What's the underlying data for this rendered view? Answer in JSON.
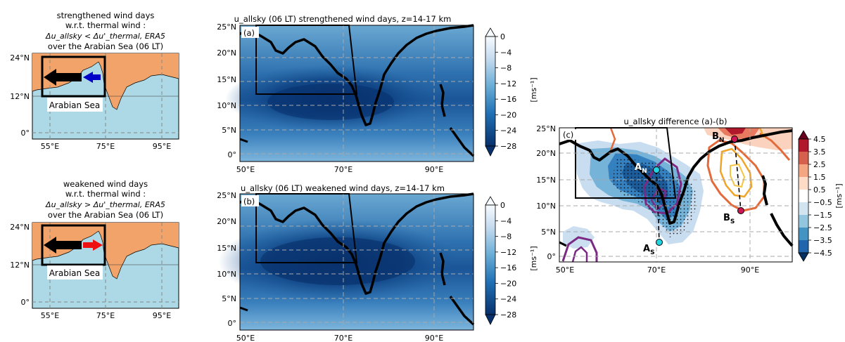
{
  "colors": {
    "land": "#f1a36a",
    "sea": "#add8e6",
    "arrow_black": "#000000",
    "arrow_strong": "#0000c8",
    "arrow_weak": "#ee1111",
    "hatch_dots": "#000000"
  },
  "schematic_top": {
    "title_l1": "strengthened wind days",
    "title_l2": "w.r.t. thermal wind :",
    "title_l3": "Δu_allsky < Δu'_thermal, ERA5",
    "title_l4": "over the Arabian Sea (06 LT)",
    "sea_label": "Arabian Sea",
    "yticks": [
      "24°N",
      "12°N",
      "0°"
    ],
    "xticks": [
      "55°E",
      "75°E",
      "95°E"
    ]
  },
  "schematic_bottom": {
    "title_l1": "weakened wind days",
    "title_l2": "w.r.t. thermal wind :",
    "title_l3": "Δu_allsky > Δu'_thermal, ERA5",
    "title_l4": "over the Arabian Sea (06 LT)",
    "sea_label": "Arabian Sea",
    "yticks": [
      "24°N",
      "12°N",
      "0°"
    ],
    "xticks": [
      "55°E",
      "75°E",
      "95°E"
    ]
  },
  "panel_a": {
    "title": "u_allsky (06 LT) strengthened wind days, z=14-17 km",
    "label": "(a)",
    "yticks": [
      "25°N",
      "20°N",
      "15°N",
      "10°N",
      "5°N",
      "0°"
    ],
    "xticks": [
      "50°E",
      "70°E",
      "90°E"
    ]
  },
  "panel_b": {
    "title": "u_allsky (06 LT) weakened wind days, z=14-17 km",
    "label": "(b)",
    "yticks": [
      "25°N",
      "20°N",
      "15°N",
      "10°N",
      "5°N",
      "0°"
    ],
    "xticks": [
      "50°E",
      "70°E",
      "90°E"
    ]
  },
  "colorbar_blue": {
    "ticks": [
      "0",
      "−4",
      "−8",
      "−12",
      "−16",
      "−20",
      "−24",
      "−28"
    ],
    "unit": "[ms⁻¹]",
    "levels": [
      0,
      -4,
      -8,
      -12,
      -16,
      -20,
      -24,
      -28
    ]
  },
  "panel_c": {
    "title": "u_allsky difference (a)-(b)",
    "label": "(c)",
    "yticks": [
      "25°N",
      "20°N",
      "15°N",
      "10°N",
      "5°N",
      "0°"
    ],
    "xticks": [
      "50°E",
      "70°E",
      "90°E"
    ],
    "points": [
      {
        "name": "A_N",
        "label": "A",
        "sub": "N"
      },
      {
        "name": "A_S",
        "label": "A",
        "sub": "S"
      },
      {
        "name": "B_N",
        "label": "B",
        "sub": "N"
      },
      {
        "name": "B_S",
        "label": "B",
        "sub": "S"
      }
    ]
  },
  "colorbar_div": {
    "ticks": [
      "4.5",
      "3.5",
      "2.5",
      "1.5",
      "0.5",
      "−0.5",
      "−1.5",
      "−2.5",
      "−3.5",
      "−4.5"
    ],
    "unit": "[ms⁻¹]",
    "levels": [
      4.5,
      3.5,
      2.5,
      1.5,
      0.5,
      -0.5,
      -1.5,
      -2.5,
      -3.5,
      -4.5
    ]
  }
}
